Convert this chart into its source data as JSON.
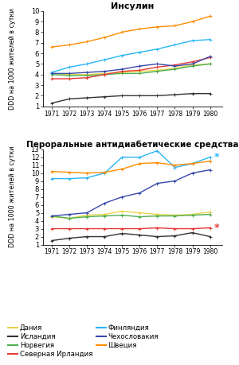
{
  "years": [
    1971,
    1972,
    1973,
    1974,
    1975,
    1976,
    1977,
    1978,
    1979,
    1980
  ],
  "title1": "Инсулин",
  "title2": "Пероральные антидиабетические средства",
  "ylabel": "DDD на 1000 жителей в сутки",
  "insulin": {
    "Дания": [
      4.1,
      4.0,
      4.0,
      4.1,
      4.2,
      4.3,
      4.4,
      4.6,
      4.9,
      5.0
    ],
    "Норвегия": [
      4.0,
      3.9,
      3.9,
      4.0,
      4.1,
      4.1,
      4.3,
      4.5,
      4.8,
      5.0
    ],
    "Финляндия": [
      4.2,
      4.7,
      5.0,
      5.4,
      5.8,
      6.1,
      6.4,
      6.8,
      7.2,
      7.3
    ],
    "Швеция": [
      6.6,
      6.8,
      7.1,
      7.5,
      8.0,
      8.3,
      8.5,
      8.6,
      9.0,
      9.5
    ],
    "Исландия": [
      1.3,
      1.7,
      1.8,
      1.9,
      2.0,
      2.0,
      2.0,
      2.1,
      2.2,
      2.2
    ],
    "Северная Ирландия": [
      3.6,
      3.6,
      3.7,
      4.0,
      4.3,
      4.4,
      4.7,
      4.9,
      5.2,
      5.6
    ],
    "Чехословакия": [
      4.1,
      4.1,
      4.2,
      4.3,
      4.5,
      4.8,
      5.0,
      4.8,
      5.0,
      5.7
    ]
  },
  "oral": {
    "Дания": [
      4.5,
      4.3,
      4.7,
      4.8,
      5.2,
      5.0,
      4.8,
      4.7,
      4.8,
      5.1
    ],
    "Норвегия": [
      4.6,
      4.3,
      4.5,
      4.6,
      4.7,
      4.5,
      4.6,
      4.6,
      4.7,
      4.8
    ],
    "Финляндия": [
      9.3,
      9.3,
      9.4,
      10.0,
      12.0,
      12.0,
      12.8,
      10.7,
      11.2,
      12.0
    ],
    "Швеция": [
      10.2,
      10.1,
      10.0,
      10.1,
      10.5,
      11.2,
      11.3,
      11.0,
      11.2,
      11.5
    ],
    "Исландия": [
      1.5,
      1.8,
      2.0,
      2.0,
      2.4,
      2.2,
      2.0,
      2.1,
      2.5,
      2.0
    ],
    "Северная Ирландия": [
      3.0,
      3.0,
      3.0,
      3.0,
      3.0,
      3.0,
      3.1,
      3.0,
      3.0,
      3.1
    ],
    "Чехословакия": [
      4.6,
      4.8,
      5.0,
      6.2,
      7.0,
      7.5,
      8.7,
      9.0,
      10.0,
      10.4
    ]
  },
  "colors": {
    "Дания": "#e8d44d",
    "Норвегия": "#4caf50",
    "Финляндия": "#29b6f6",
    "Швеция": "#ff8c00",
    "Исландия": "#333333",
    "Северная Ирландия": "#e53935",
    "Чехословакия": "#3949ab"
  },
  "insulin_ylim": [
    1,
    10
  ],
  "oral_ylim": [
    1,
    13
  ],
  "insulin_yticks": [
    1,
    2,
    3,
    4,
    5,
    6,
    7,
    8,
    9,
    10
  ],
  "oral_yticks": [
    1,
    2,
    3,
    4,
    5,
    6,
    7,
    8,
    9,
    10,
    11,
    12,
    13
  ],
  "legend_col1": [
    "Дания",
    "Норвегия",
    "Финляндия",
    "Швеция"
  ],
  "legend_col2": [
    "Исландия",
    "Северная Ирландия",
    "Чехословакия"
  ]
}
